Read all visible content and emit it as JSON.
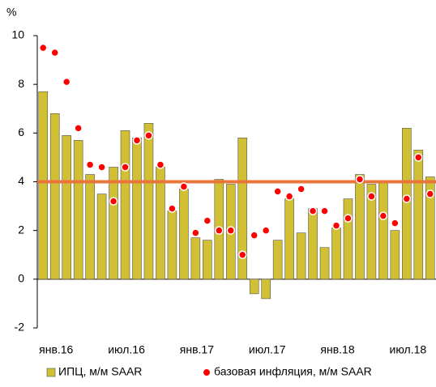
{
  "chart_data": {
    "type": "bar_dot",
    "y_unit_label": "%",
    "categories": [
      "янв.16",
      null,
      null,
      null,
      null,
      null,
      "июл.16",
      null,
      null,
      null,
      null,
      null,
      "янв.17",
      null,
      null,
      null,
      null,
      null,
      "июл.17",
      null,
      null,
      null,
      null,
      null,
      "янв.18",
      null,
      null,
      null,
      null,
      null,
      "июл.18",
      null,
      null,
      null
    ],
    "series": [
      {
        "name": "ИПЦ, м/м SAAR",
        "color": "#d2c034",
        "kind": "bar",
        "values": [
          7.7,
          6.8,
          5.9,
          5.7,
          4.3,
          3.5,
          4.6,
          6.1,
          5.8,
          6.4,
          4.6,
          2.8,
          3.7,
          1.7,
          1.6,
          4.1,
          3.9,
          5.8,
          -0.6,
          -0.8,
          1.6,
          3.3,
          1.9,
          2.9,
          1.3,
          2.1,
          3.3,
          4.3,
          3.9,
          4.0,
          2.0,
          6.2,
          5.3,
          4.2
        ]
      },
      {
        "name": "базовая инфляция, м/м SAAR",
        "color": "#ff0000",
        "kind": "dot",
        "values": [
          9.5,
          9.3,
          8.1,
          6.2,
          4.7,
          4.6,
          3.2,
          4.6,
          5.7,
          5.9,
          4.7,
          2.9,
          3.8,
          1.9,
          2.4,
          2.0,
          2.0,
          1.0,
          1.8,
          2.0,
          3.6,
          3.4,
          3.7,
          2.8,
          2.8,
          2.2,
          2.5,
          4.1,
          3.4,
          2.6,
          2.3,
          3.3,
          5.0,
          3.5
        ]
      }
    ],
    "reference_line": {
      "value": 4,
      "color": "#e8763a"
    },
    "ylim": [
      -2,
      10
    ],
    "yticks": [
      -2,
      0,
      2,
      4,
      6,
      8,
      10
    ]
  }
}
